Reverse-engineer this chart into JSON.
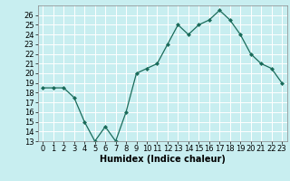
{
  "x": [
    0,
    1,
    2,
    3,
    4,
    5,
    6,
    7,
    8,
    9,
    10,
    11,
    12,
    13,
    14,
    15,
    16,
    17,
    18,
    19,
    20,
    21,
    22,
    23
  ],
  "y": [
    18.5,
    18.5,
    18.5,
    17.5,
    15.0,
    13.0,
    14.5,
    13.0,
    16.0,
    20.0,
    20.5,
    21.0,
    23.0,
    25.0,
    24.0,
    25.0,
    25.5,
    26.5,
    25.5,
    24.0,
    22.0,
    21.0,
    20.5,
    19.0
  ],
  "xlabel": "Humidex (Indice chaleur)",
  "xlim": [
    -0.5,
    23.5
  ],
  "ylim": [
    13,
    27
  ],
  "yticks": [
    13,
    14,
    15,
    16,
    17,
    18,
    19,
    20,
    21,
    22,
    23,
    24,
    25,
    26
  ],
  "xticks": [
    0,
    1,
    2,
    3,
    4,
    5,
    6,
    7,
    8,
    9,
    10,
    11,
    12,
    13,
    14,
    15,
    16,
    17,
    18,
    19,
    20,
    21,
    22,
    23
  ],
  "line_color": "#1a6b5a",
  "marker_color": "#1a6b5a",
  "bg_color": "#c8eef0",
  "grid_color": "#ffffff",
  "tick_fontsize": 6,
  "xlabel_fontsize": 7
}
